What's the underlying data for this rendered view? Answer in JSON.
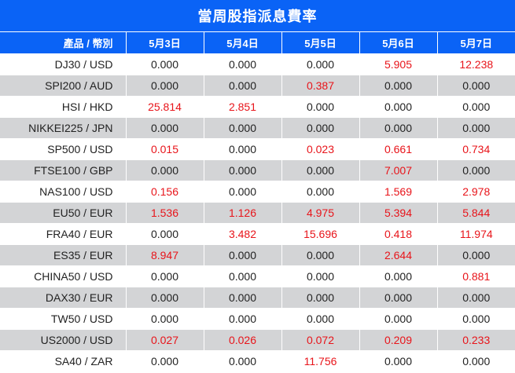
{
  "title": "當周股指派息費率",
  "header": {
    "product_label": "產品 / 幣別",
    "dates": [
      "5月3日",
      "5月4日",
      "5月5日",
      "5月6日",
      "5月7日"
    ]
  },
  "colors": {
    "header_bg": "#0a63f6",
    "alt_row": "#d3d4d6",
    "positive_value": "#e8141a"
  },
  "rows": [
    {
      "product": "DJ30 / USD",
      "values": [
        "0.000",
        "0.000",
        "0.000",
        "5.905",
        "12.238"
      ]
    },
    {
      "product": "SPI200 / AUD",
      "values": [
        "0.000",
        "0.000",
        "0.387",
        "0.000",
        "0.000"
      ]
    },
    {
      "product": "HSI / HKD",
      "values": [
        "25.814",
        "2.851",
        "0.000",
        "0.000",
        "0.000"
      ]
    },
    {
      "product": "NIKKEI225 / JPN",
      "values": [
        "0.000",
        "0.000",
        "0.000",
        "0.000",
        "0.000"
      ]
    },
    {
      "product": "SP500 / USD",
      "values": [
        "0.015",
        "0.000",
        "0.023",
        "0.661",
        "0.734"
      ]
    },
    {
      "product": "FTSE100 / GBP",
      "values": [
        "0.000",
        "0.000",
        "0.000",
        "7.007",
        "0.000"
      ]
    },
    {
      "product": "NAS100 / USD",
      "values": [
        "0.156",
        "0.000",
        "0.000",
        "1.569",
        "2.978"
      ]
    },
    {
      "product": "EU50 / EUR",
      "values": [
        "1.536",
        "1.126",
        "4.975",
        "5.394",
        "5.844"
      ]
    },
    {
      "product": "FRA40 / EUR",
      "values": [
        "0.000",
        "3.482",
        "15.696",
        "0.418",
        "11.974"
      ]
    },
    {
      "product": "ES35 / EUR",
      "values": [
        "8.947",
        "0.000",
        "0.000",
        "2.644",
        "0.000"
      ]
    },
    {
      "product": "CHINA50 / USD",
      "values": [
        "0.000",
        "0.000",
        "0.000",
        "0.000",
        "0.881"
      ]
    },
    {
      "product": "DAX30 / EUR",
      "values": [
        "0.000",
        "0.000",
        "0.000",
        "0.000",
        "0.000"
      ]
    },
    {
      "product": "TW50 / USD",
      "values": [
        "0.000",
        "0.000",
        "0.000",
        "0.000",
        "0.000"
      ]
    },
    {
      "product": "US2000 / USD",
      "values": [
        "0.027",
        "0.026",
        "0.072",
        "0.209",
        "0.233"
      ]
    },
    {
      "product": "SA40 / ZAR",
      "values": [
        "0.000",
        "0.000",
        "11.756",
        "0.000",
        "0.000"
      ]
    }
  ]
}
